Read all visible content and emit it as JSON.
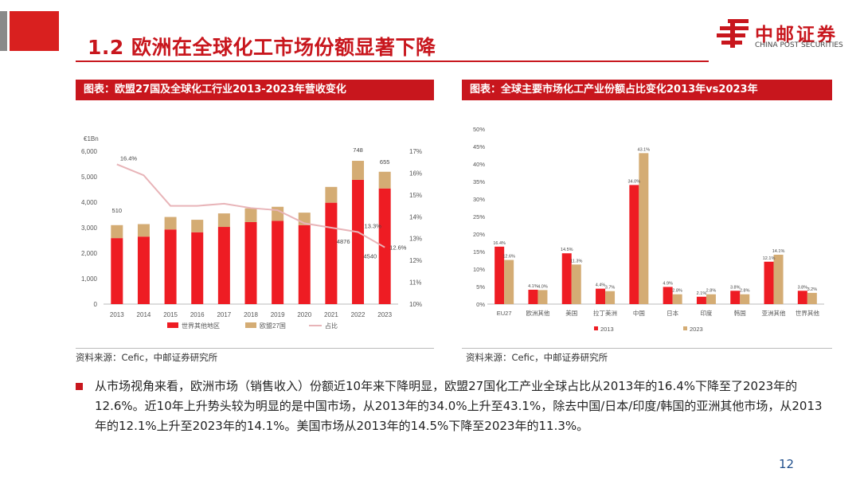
{
  "title": "1.2 欧洲在全球化工市场份额显著下降",
  "logo": {
    "cn": "中邮证券",
    "en": "CHINA POST SECURITIES"
  },
  "colors": {
    "red": "#c8161d",
    "bar_red": "#ee1c23",
    "bar_tan": "#d4ac74",
    "line_pink": "#e8b4b8"
  },
  "chart_left_header": "图表：欧盟27国及全球化工行业2013-2023年营收变化",
  "chart_right_header": "图表：全球主要市场化工产业份额占比变化2013年vs2023年",
  "source_left": "资料来源：Cefic，中邮证券研究所",
  "source_right": "资料来源：Cefic，中邮证券研究所",
  "body_text": "从市场视角来看，欧洲市场（销售收入）份额近10年来下降明显，欧盟27国化工产业全球占比从2013年的16.4%下降至了2023年的12.6%。近10年上升势头较为明显的是中国市场，从2013年的34.0%上升至43.1%，除去中国/日本/印度/韩国的亚洲其他市场，从2013年的12.1%上升至2023年的14.1%。美国市场从2013年的14.5%下降至2023年的11.3%。",
  "page_number": "12",
  "chart_data": [
    {
      "type": "bar",
      "stacked": true,
      "unit_label": "€1Bn",
      "categories": [
        "2013",
        "2014",
        "2015",
        "2016",
        "2017",
        "2018",
        "2019",
        "2020",
        "2021",
        "2022",
        "2023"
      ],
      "series": [
        {
          "name": "世界其他地区",
          "values": [
            2590,
            2650,
            2930,
            2820,
            3030,
            3220,
            3270,
            3100,
            3980,
            4876,
            4540
          ]
        },
        {
          "name": "欧盟27国",
          "values": [
            510,
            490,
            490,
            490,
            530,
            540,
            550,
            490,
            620,
            748,
            655
          ]
        }
      ],
      "line": {
        "name": "占比",
        "values": [
          16.4,
          15.9,
          14.5,
          14.5,
          14.6,
          14.4,
          14.3,
          13.7,
          13.5,
          13.3,
          12.6
        ]
      },
      "ylim": [
        0,
        6000
      ],
      "y_ticks": [
        "0",
        "1,000",
        "2,000",
        "3,000",
        "4,000",
        "5,000",
        "6,000"
      ],
      "y2lim": [
        10,
        17
      ],
      "y2_ticks": [
        "10%",
        "11%",
        "12%",
        "13%",
        "14%",
        "15%",
        "16%",
        "17%"
      ],
      "annotations": {
        "eu_2013": "510",
        "eu_2022": "748",
        "eu_2023": "655",
        "row_2022": "4876",
        "row_2023": "4540",
        "share_2013": "16.4%",
        "share_2022": "13.3%",
        "share_2023": "12.6%"
      }
    },
    {
      "type": "bar",
      "categories": [
        "EU27",
        "欧洲其他",
        "美国",
        "拉丁美洲",
        "中国",
        "日本",
        "印度",
        "韩国",
        "亚洲其他",
        "世界其他"
      ],
      "series": [
        {
          "name": "2013",
          "values": [
            16.4,
            4.1,
            14.5,
            4.4,
            34.0,
            4.9,
            2.1,
            3.8,
            12.1,
            3.8
          ],
          "labels": [
            "16.4%",
            "4.1%",
            "14.5%",
            "4.4%",
            "34.0%",
            "4.9%",
            "2.1%",
            "3.8%",
            "12.1%",
            "3.8%"
          ]
        },
        {
          "name": "2023",
          "values": [
            12.6,
            4.0,
            11.3,
            3.7,
            43.1,
            2.8,
            2.8,
            2.8,
            14.1,
            3.2
          ],
          "labels": [
            "12.6%",
            "4.0%",
            "11.3%",
            "3.7%",
            "43.1%",
            "2.8%",
            "2.8%",
            "2.8%",
            "14.1%",
            "3.2%"
          ]
        }
      ],
      "ylim": [
        0,
        50
      ],
      "y_ticks": [
        "0%",
        "5%",
        "10%",
        "15%",
        "20%",
        "25%",
        "30%",
        "35%",
        "40%",
        "45%",
        "50%"
      ]
    }
  ]
}
